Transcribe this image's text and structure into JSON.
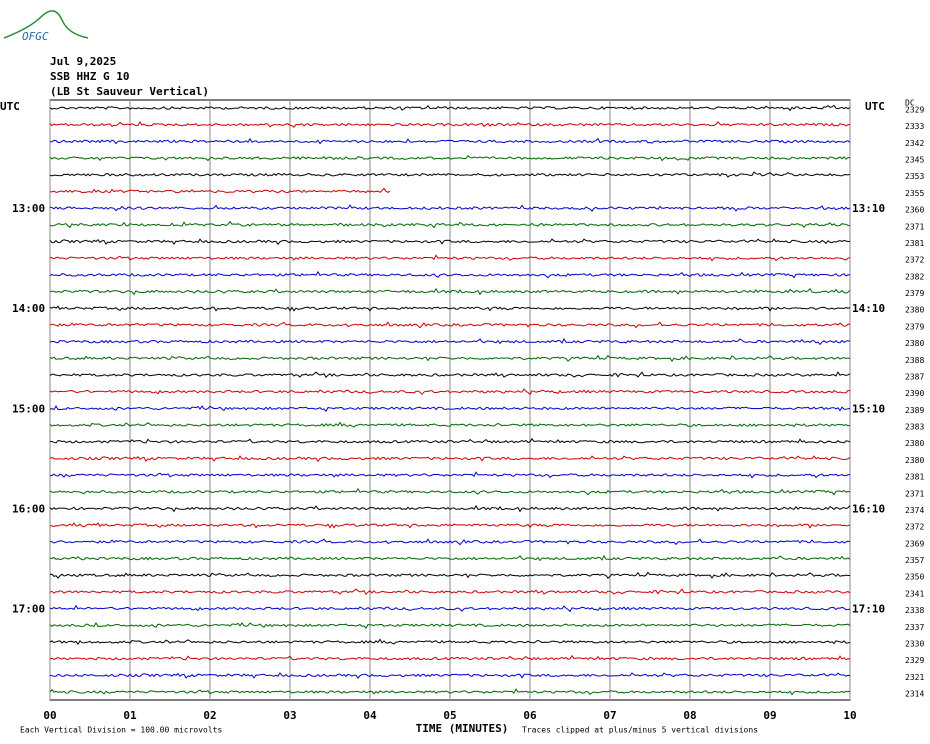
{
  "logo": "OFGC",
  "chart_data": {
    "type": "helicorder",
    "title_lines": [
      "Jul 9,2025",
      "SSB HHZ G 10",
      "(LB  St Sauveur Vertical)"
    ],
    "xlabel": "TIME (MINUTES)",
    "footer_left": "Each Vertical Division =  100.00 microvolts",
    "footer_right": "Traces clipped at plus/minus 5 vertical divisions",
    "dc_header": "DC",
    "xlim": [
      0,
      10
    ],
    "xticks": [
      {
        "value": 0,
        "label": "00"
      },
      {
        "value": 1,
        "label": "01"
      },
      {
        "value": 2,
        "label": "02"
      },
      {
        "value": 3,
        "label": "03"
      },
      {
        "value": 4,
        "label": "04"
      },
      {
        "value": 5,
        "label": "05"
      },
      {
        "value": 6,
        "label": "06"
      },
      {
        "value": 7,
        "label": "07"
      },
      {
        "value": 8,
        "label": "08"
      },
      {
        "value": 9,
        "label": "09"
      },
      10
    ],
    "grid": true,
    "trace_colors": [
      "#000000",
      "#cc0000",
      "#0000cc",
      "#006600"
    ],
    "left_labels": [
      "UTC",
      null,
      null,
      null,
      null,
      null,
      "13:00",
      null,
      null,
      null,
      null,
      null,
      "14:00",
      null,
      null,
      null,
      null,
      null,
      "15:00",
      null,
      null,
      null,
      null,
      null,
      "16:00",
      null,
      null,
      null,
      null,
      null,
      "17:00",
      null,
      null,
      null,
      null,
      null
    ],
    "right_labels": [
      "UTC",
      null,
      null,
      null,
      null,
      null,
      "13:10",
      null,
      null,
      null,
      null,
      null,
      "14:10",
      null,
      null,
      null,
      null,
      null,
      "15:10",
      null,
      null,
      null,
      null,
      null,
      "16:10",
      null,
      null,
      null,
      null,
      null,
      "17:10",
      null,
      null,
      null,
      null,
      null
    ],
    "dc": [
      2329,
      2333,
      2342,
      2345,
      2353,
      2355,
      2360,
      2371,
      2381,
      2372,
      2382,
      2379,
      2380,
      2379,
      2380,
      2388,
      2387,
      2390,
      2389,
      2383,
      2380,
      2380,
      2381,
      2371,
      2374,
      2372,
      2369,
      2357,
      2350,
      2341,
      2338,
      2337,
      2330,
      2329,
      2321,
      2314
    ],
    "partial_rows": [
      {
        "row": 5,
        "end": 4.25
      }
    ]
  }
}
